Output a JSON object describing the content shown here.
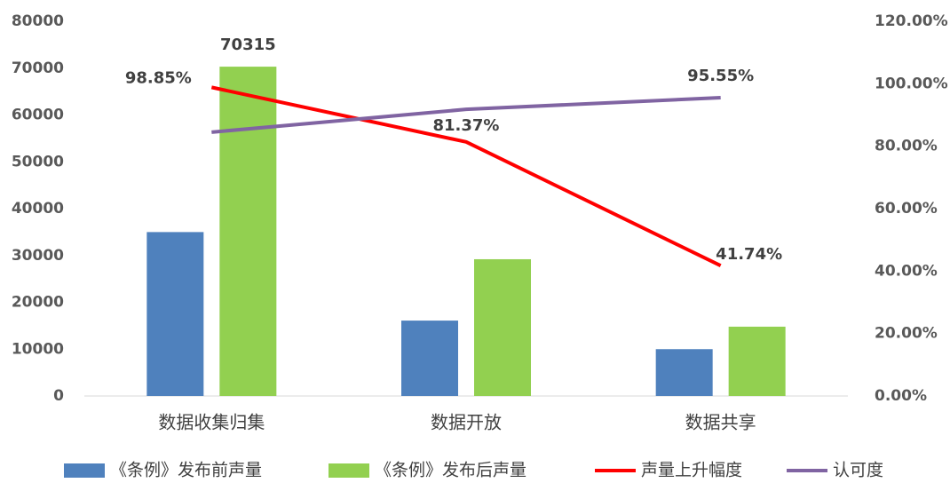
{
  "chart_data": {
    "type": "bar_line",
    "categories": [
      "数据收集归集",
      "数据开放",
      "数据共享"
    ],
    "series": [
      {
        "name": "《条例》发布前声量",
        "type": "bar",
        "color": "#4f81bd",
        "values": [
          35000,
          16100,
          10000
        ]
      },
      {
        "name": "《条例》发布后声量",
        "type": "bar",
        "color": "#92d050",
        "values": [
          70315,
          29200,
          14800
        ],
        "value_labels": [
          "70315",
          null,
          null
        ]
      },
      {
        "name": "声量上升幅度",
        "type": "line",
        "axis": "y2",
        "color": "#ff0000",
        "values": [
          98.85,
          81.37,
          41.74
        ],
        "value_labels": [
          "98.85%",
          "81.37%",
          "41.74%"
        ]
      },
      {
        "name": "认可度",
        "type": "line",
        "axis": "y2",
        "color": "#8064a2",
        "values": [
          84.5,
          91.8,
          95.55
        ],
        "value_labels": [
          null,
          null,
          "95.55%"
        ]
      }
    ],
    "ylim": [
      0,
      80000
    ],
    "yticks": [
      0,
      10000,
      20000,
      30000,
      40000,
      50000,
      60000,
      70000,
      80000
    ],
    "y2lim": [
      0,
      120
    ],
    "y2ticks": [
      {
        "value": 0,
        "label": "0.00%"
      },
      {
        "value": 20,
        "label": "20.00%"
      },
      {
        "value": 40,
        "label": "40.00%"
      },
      {
        "value": 60,
        "label": "60.00%"
      },
      {
        "value": 80,
        "label": "80.00%"
      },
      {
        "value": 100,
        "label": "100.00%"
      },
      {
        "value": 120,
        "label": "120.00%"
      }
    ],
    "grid": false,
    "legend": "bottom"
  }
}
